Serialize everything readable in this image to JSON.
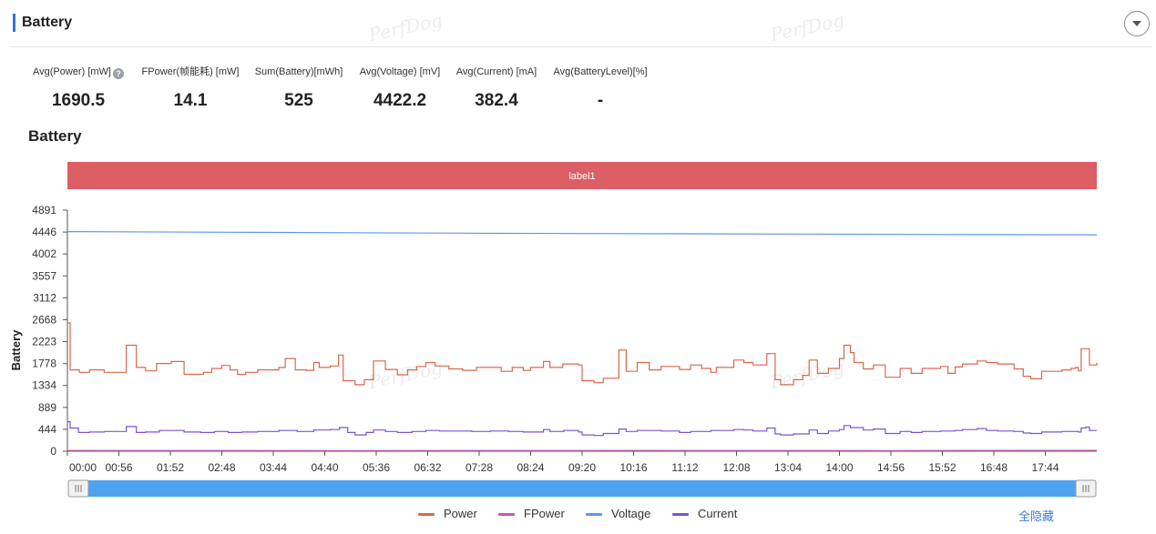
{
  "panel": {
    "title": "Battery"
  },
  "watermark_text": "PerfDog",
  "metrics": [
    {
      "label": "Avg(Power) [mW]",
      "value": "1690.5",
      "has_help": true
    },
    {
      "label": "FPower(帧能耗) [mW]",
      "value": "14.1"
    },
    {
      "label": "Sum(Battery)[mWh]",
      "value": "525"
    },
    {
      "label": "Avg(Voltage) [mV]",
      "value": "4422.2"
    },
    {
      "label": "Avg(Current) [mA]",
      "value": "382.4"
    },
    {
      "label": "Avg(BatteryLevel)[%]",
      "value": "-"
    }
  ],
  "chart_data": {
    "type": "line",
    "title": "Battery",
    "ylabel": "Battery",
    "xlabel": "",
    "ylim": [
      0,
      4891
    ],
    "y_ticks": [
      0,
      444,
      889,
      1334,
      1778,
      2223,
      2668,
      3112,
      3557,
      4002,
      4446,
      4891
    ],
    "x_tick_labels": [
      "00:00",
      "00:56",
      "01:52",
      "02:48",
      "03:44",
      "04:40",
      "05:36",
      "06:32",
      "07:28",
      "08:24",
      "09:20",
      "10:16",
      "11:12",
      "12:08",
      "13:04",
      "14:00",
      "14:56",
      "15:52",
      "16:48",
      "17:44"
    ],
    "x_tick_seconds": [
      0,
      56,
      112,
      168,
      224,
      280,
      336,
      392,
      448,
      504,
      560,
      616,
      672,
      728,
      784,
      840,
      896,
      952,
      1008,
      1064
    ],
    "xlim_seconds": [
      0,
      1120
    ],
    "marker_band": {
      "label": "label1",
      "color": "#dc5f66",
      "start_s": 0,
      "end_s": 1120
    },
    "series": [
      {
        "name": "Power",
        "color": "#d9694a",
        "step": true,
        "points": [
          [
            0,
            2600
          ],
          [
            3,
            1650
          ],
          [
            13,
            1600
          ],
          [
            24,
            1650
          ],
          [
            40,
            1600
          ],
          [
            64,
            2150
          ],
          [
            75,
            1700
          ],
          [
            85,
            1630
          ],
          [
            97,
            1780
          ],
          [
            113,
            1820
          ],
          [
            127,
            1560
          ],
          [
            148,
            1600
          ],
          [
            157,
            1680
          ],
          [
            168,
            1740
          ],
          [
            177,
            1650
          ],
          [
            185,
            1560
          ],
          [
            194,
            1600
          ],
          [
            207,
            1650
          ],
          [
            230,
            1700
          ],
          [
            237,
            1880
          ],
          [
            248,
            1650
          ],
          [
            260,
            1640
          ],
          [
            268,
            1800
          ],
          [
            274,
            1700
          ],
          [
            286,
            1730
          ],
          [
            295,
            1950
          ],
          [
            300,
            1430
          ],
          [
            313,
            1350
          ],
          [
            323,
            1450
          ],
          [
            333,
            1830
          ],
          [
            346,
            1660
          ],
          [
            359,
            1550
          ],
          [
            370,
            1650
          ],
          [
            380,
            1720
          ],
          [
            390,
            1800
          ],
          [
            400,
            1730
          ],
          [
            415,
            1670
          ],
          [
            430,
            1640
          ],
          [
            445,
            1700
          ],
          [
            460,
            1700
          ],
          [
            472,
            1620
          ],
          [
            484,
            1700
          ],
          [
            496,
            1640
          ],
          [
            504,
            1700
          ],
          [
            518,
            1820
          ],
          [
            525,
            1700
          ],
          [
            539,
            1770
          ],
          [
            556,
            1750
          ],
          [
            560,
            1430
          ],
          [
            573,
            1390
          ],
          [
            583,
            1480
          ],
          [
            600,
            2050
          ],
          [
            608,
            1620
          ],
          [
            620,
            1800
          ],
          [
            633,
            1650
          ],
          [
            646,
            1720
          ],
          [
            666,
            1660
          ],
          [
            678,
            1750
          ],
          [
            690,
            1680
          ],
          [
            700,
            1600
          ],
          [
            706,
            1700
          ],
          [
            725,
            1850
          ],
          [
            736,
            1800
          ],
          [
            746,
            1750
          ],
          [
            761,
            1980
          ],
          [
            770,
            1450
          ],
          [
            776,
            1350
          ],
          [
            790,
            1450
          ],
          [
            800,
            1540
          ],
          [
            807,
            1850
          ],
          [
            816,
            1580
          ],
          [
            828,
            1680
          ],
          [
            840,
            1880
          ],
          [
            845,
            2150
          ],
          [
            852,
            2000
          ],
          [
            856,
            1800
          ],
          [
            866,
            1670
          ],
          [
            877,
            1750
          ],
          [
            890,
            1500
          ],
          [
            906,
            1680
          ],
          [
            918,
            1580
          ],
          [
            930,
            1680
          ],
          [
            950,
            1720
          ],
          [
            958,
            1580
          ],
          [
            966,
            1710
          ],
          [
            974,
            1770
          ],
          [
            990,
            1830
          ],
          [
            1000,
            1800
          ],
          [
            1012,
            1770
          ],
          [
            1030,
            1670
          ],
          [
            1040,
            1520
          ],
          [
            1048,
            1470
          ],
          [
            1060,
            1620
          ],
          [
            1082,
            1650
          ],
          [
            1092,
            1680
          ],
          [
            1097,
            1700
          ],
          [
            1100,
            1630
          ],
          [
            1103,
            2080
          ],
          [
            1108,
            2080
          ],
          [
            1112,
            1750
          ],
          [
            1120,
            1800
          ]
        ]
      },
      {
        "name": "FPower",
        "color": "#c25ab3",
        "step": false,
        "points": [
          [
            0,
            14
          ],
          [
            300,
            12
          ],
          [
            600,
            15
          ],
          [
            900,
            13
          ],
          [
            1120,
            16
          ]
        ]
      },
      {
        "name": "Voltage",
        "color": "#5a96ef",
        "step": false,
        "points": [
          [
            0,
            4455
          ],
          [
            200,
            4440
          ],
          [
            400,
            4425
          ],
          [
            600,
            4415
          ],
          [
            800,
            4405
          ],
          [
            1000,
            4395
          ],
          [
            1120,
            4390
          ]
        ]
      },
      {
        "name": "Current",
        "color": "#7b53d6",
        "step": true,
        "points": [
          [
            0,
            600
          ],
          [
            3,
            470
          ],
          [
            12,
            380
          ],
          [
            24,
            390
          ],
          [
            40,
            400
          ],
          [
            64,
            500
          ],
          [
            75,
            380
          ],
          [
            85,
            390
          ],
          [
            100,
            420
          ],
          [
            127,
            390
          ],
          [
            145,
            380
          ],
          [
            160,
            400
          ],
          [
            175,
            380
          ],
          [
            190,
            390
          ],
          [
            207,
            400
          ],
          [
            230,
            420
          ],
          [
            250,
            400
          ],
          [
            268,
            430
          ],
          [
            286,
            440
          ],
          [
            296,
            480
          ],
          [
            305,
            380
          ],
          [
            313,
            330
          ],
          [
            325,
            380
          ],
          [
            333,
            430
          ],
          [
            346,
            400
          ],
          [
            359,
            380
          ],
          [
            375,
            400
          ],
          [
            390,
            420
          ],
          [
            405,
            410
          ],
          [
            425,
            410
          ],
          [
            440,
            400
          ],
          [
            460,
            410
          ],
          [
            480,
            400
          ],
          [
            496,
            390
          ],
          [
            518,
            440
          ],
          [
            525,
            400
          ],
          [
            540,
            420
          ],
          [
            556,
            390
          ],
          [
            560,
            330
          ],
          [
            573,
            320
          ],
          [
            583,
            360
          ],
          [
            600,
            450
          ],
          [
            608,
            400
          ],
          [
            620,
            420
          ],
          [
            646,
            410
          ],
          [
            666,
            380
          ],
          [
            678,
            400
          ],
          [
            700,
            420
          ],
          [
            725,
            440
          ],
          [
            736,
            430
          ],
          [
            746,
            410
          ],
          [
            761,
            470
          ],
          [
            770,
            350
          ],
          [
            776,
            330
          ],
          [
            790,
            350
          ],
          [
            807,
            430
          ],
          [
            816,
            360
          ],
          [
            828,
            410
          ],
          [
            840,
            440
          ],
          [
            845,
            520
          ],
          [
            852,
            480
          ],
          [
            866,
            430
          ],
          [
            877,
            450
          ],
          [
            890,
            360
          ],
          [
            906,
            400
          ],
          [
            918,
            380
          ],
          [
            930,
            400
          ],
          [
            950,
            410
          ],
          [
            966,
            420
          ],
          [
            974,
            440
          ],
          [
            990,
            460
          ],
          [
            1000,
            420
          ],
          [
            1012,
            410
          ],
          [
            1030,
            400
          ],
          [
            1040,
            370
          ],
          [
            1048,
            360
          ],
          [
            1060,
            390
          ],
          [
            1082,
            400
          ],
          [
            1100,
            390
          ],
          [
            1103,
            470
          ],
          [
            1108,
            490
          ],
          [
            1112,
            420
          ],
          [
            1120,
            420
          ]
        ]
      }
    ]
  },
  "legend": [
    {
      "name": "Power",
      "color": "#d9694a"
    },
    {
      "name": "FPower",
      "color": "#c25ab3"
    },
    {
      "name": "Voltage",
      "color": "#5a96ef"
    },
    {
      "name": "Current",
      "color": "#7b53d6"
    }
  ],
  "hide_all_label": "全隐藏"
}
